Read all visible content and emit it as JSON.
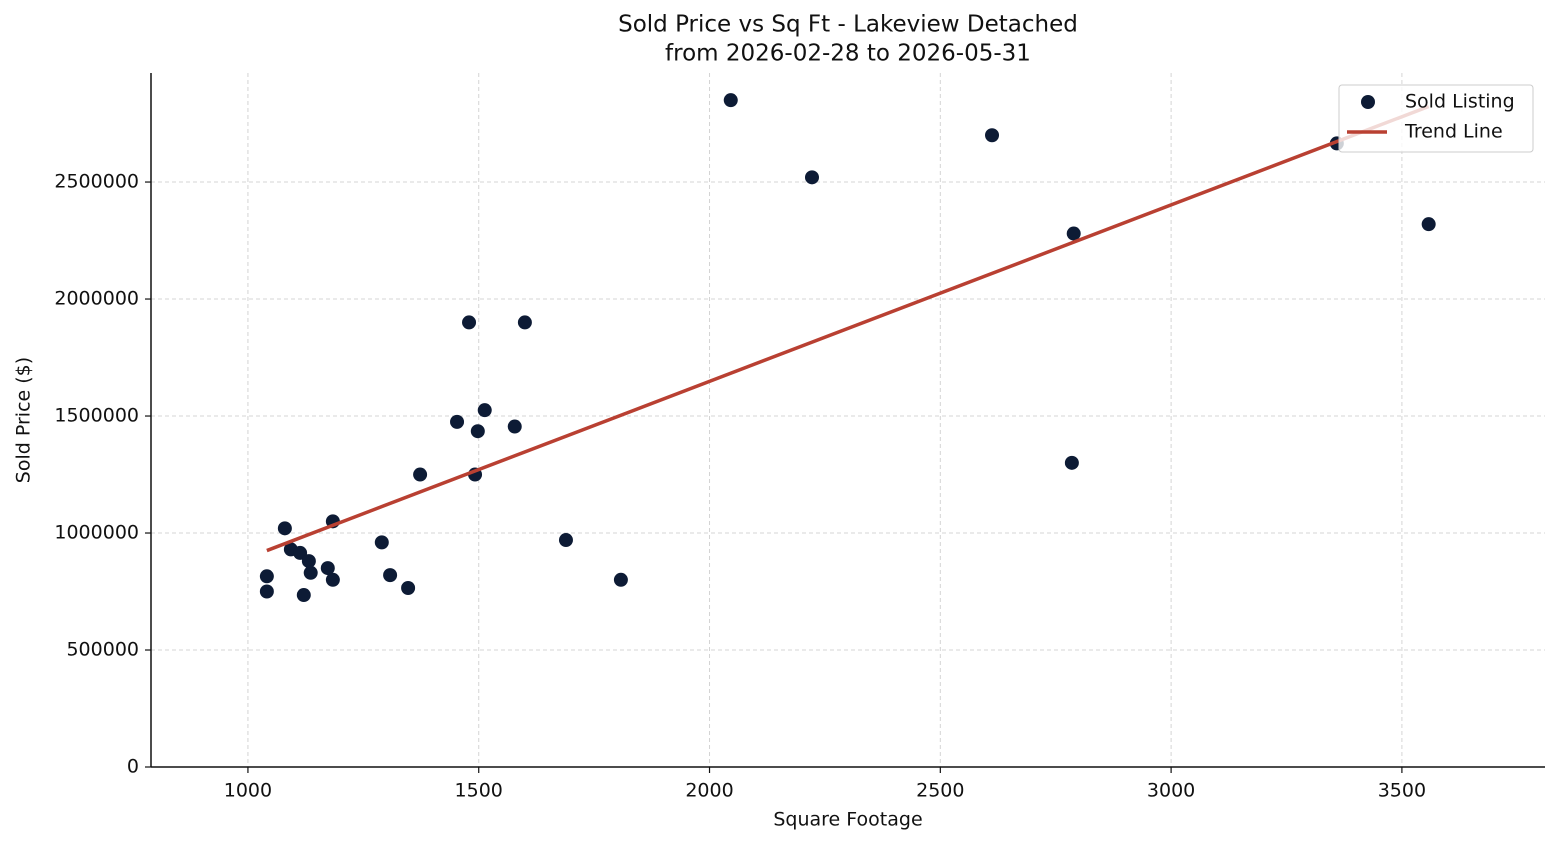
{
  "chart_data": {
    "type": "scatter",
    "title": "Sold Price vs Sq Ft - Lakeview Detached",
    "subtitle": "from 2026-02-28 to 2026-05-31",
    "x_label": "Square Footage",
    "y_label": "Sold Price ($)",
    "xlim": [
      790,
      3810
    ],
    "ylim": [
      0,
      2966000
    ],
    "xticks": [
      1000,
      1500,
      2000,
      2500,
      3000,
      3500
    ],
    "yticks": [
      0,
      500000,
      1000000,
      1500000,
      2000000,
      2500000
    ],
    "grid": true,
    "legend": "upper right",
    "series": [
      {
        "name": "Sold Listing",
        "color": "#0d1b35",
        "type": "scatter",
        "x": [
          1041,
          1041,
          1080,
          1093,
          1113,
          1121,
          1132,
          1136,
          1173,
          1184,
          1184,
          1290,
          1308,
          1347,
          1373,
          1453,
          1479,
          1492,
          1498,
          1513,
          1578,
          1600,
          1689,
          1808,
          2046,
          2222,
          2612,
          2785,
          2789,
          3359,
          3558
        ],
        "values": [
          815000,
          750000,
          1020000,
          930000,
          915000,
          735000,
          880000,
          830000,
          850000,
          800000,
          1050000,
          960000,
          820000,
          765000,
          1250000,
          1475000,
          1900000,
          1250000,
          1435000,
          1525000,
          1455000,
          1900000,
          970000,
          800000,
          2850000,
          2520000,
          2700000,
          1300000,
          2280000,
          2665000,
          2320000
        ]
      },
      {
        "name": "Trend Line",
        "color": "#b94032",
        "type": "line",
        "x": [
          1041,
          3558
        ],
        "values": [
          925000,
          2823000
        ]
      }
    ]
  }
}
